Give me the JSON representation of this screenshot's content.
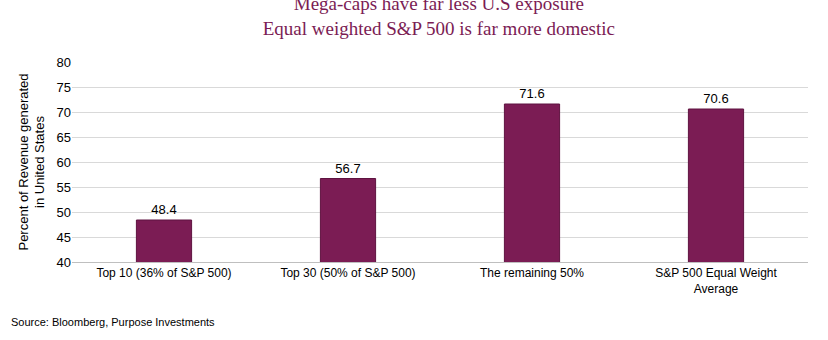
{
  "chart_data": {
    "type": "bar",
    "title": "Mega-caps have far less U.S exposure",
    "subtitle": "Equal weighted S&P 500 is far more domestic",
    "ylabel": "Percent of Revenue generated in United States",
    "categories": [
      "Top 10 (36% of S&P 500)",
      "Top 30 (50% of S&P 500)",
      "The remaining 50%",
      "S&P 500 Equal Weight Average"
    ],
    "values": [
      48.4,
      56.7,
      71.6,
      70.6
    ],
    "color": "#7b1c54",
    "ylim": [
      40,
      80
    ],
    "yticks": [
      40,
      45,
      50,
      55,
      60,
      65,
      70,
      75,
      80
    ],
    "grid": true,
    "data_labels": true,
    "annotations": [
      "Source: Bloomberg, Purpose Investments"
    ]
  }
}
